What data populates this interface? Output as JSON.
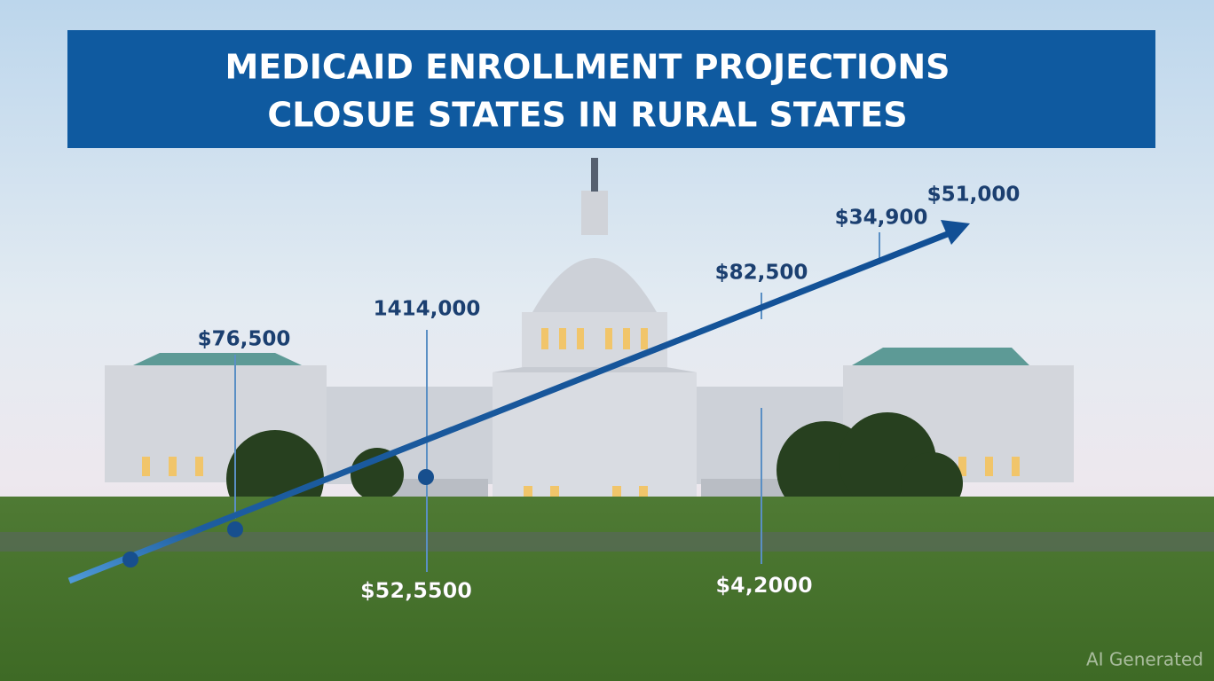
{
  "header": {
    "title_lines": [
      "MEDICAID ENROLLMENT PROJECTIONS",
      "CLOSUE STATES IN RURAL STATES"
    ]
  },
  "labels": [
    "$76,500",
    "1414,000",
    "$82,500",
    "$34,900",
    "$51,000",
    "$52,5500",
    "$4,2000"
  ],
  "watermark": "AI Generated"
}
